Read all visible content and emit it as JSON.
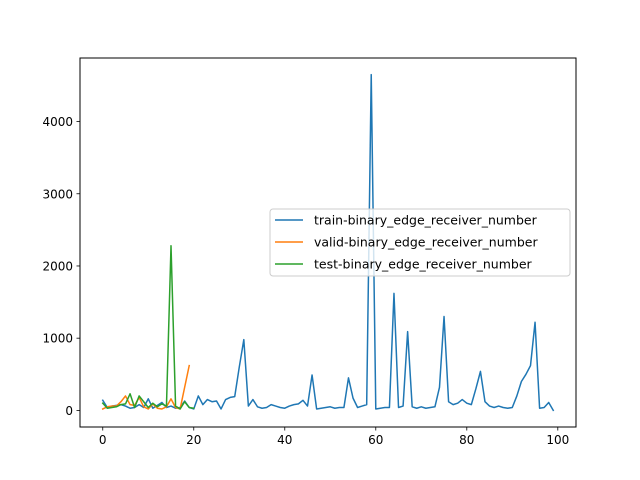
{
  "chart_data": {
    "type": "line",
    "title": "",
    "xlabel": "",
    "ylabel": "",
    "xlim": [
      -5,
      104
    ],
    "ylim": [
      -230,
      4880
    ],
    "xticks": [
      0,
      20,
      40,
      60,
      80,
      100
    ],
    "yticks": [
      0,
      1000,
      2000,
      3000,
      4000
    ],
    "grid": false,
    "legend_position": "center-right",
    "series": [
      {
        "name": "train-binary_edge_receiver_number",
        "color": "#1f77b4",
        "x": [
          0,
          1,
          2,
          3,
          4,
          5,
          6,
          7,
          8,
          9,
          10,
          11,
          12,
          13,
          14,
          15,
          16,
          17,
          18,
          19,
          20,
          21,
          22,
          23,
          24,
          25,
          26,
          27,
          28,
          29,
          30,
          31,
          32,
          33,
          34,
          35,
          36,
          37,
          38,
          39,
          40,
          41,
          42,
          43,
          44,
          45,
          46,
          47,
          48,
          49,
          50,
          51,
          52,
          53,
          54,
          55,
          56,
          57,
          58,
          59,
          60,
          61,
          62,
          63,
          64,
          65,
          66,
          67,
          68,
          69,
          70,
          71,
          72,
          73,
          74,
          75,
          76,
          77,
          78,
          79,
          80,
          81,
          82,
          83,
          84,
          85,
          86,
          87,
          88,
          89,
          90,
          91,
          92,
          93,
          94,
          95,
          96,
          97,
          98,
          99
        ],
        "values": [
          140,
          40,
          60,
          70,
          80,
          60,
          30,
          40,
          80,
          40,
          160,
          30,
          70,
          110,
          40,
          60,
          30,
          40,
          130,
          40,
          20,
          200,
          80,
          150,
          120,
          130,
          20,
          150,
          180,
          190,
          600,
          980,
          60,
          150,
          50,
          30,
          40,
          80,
          60,
          40,
          30,
          60,
          80,
          90,
          140,
          60,
          490,
          20,
          30,
          40,
          50,
          30,
          40,
          40,
          450,
          170,
          40,
          60,
          80,
          4650,
          20,
          30,
          40,
          40,
          1620,
          40,
          60,
          1090,
          50,
          30,
          50,
          30,
          40,
          50,
          320,
          1300,
          120,
          80,
          100,
          150,
          100,
          80,
          300,
          540,
          120,
          60,
          40,
          60,
          40,
          30,
          40,
          200,
          400,
          500,
          620,
          1220,
          30,
          40,
          110,
          0
        ]
      },
      {
        "name": "valid-binary_edge_receiver_number",
        "color": "#ff7f0e",
        "x": [
          0,
          1,
          2,
          3,
          4,
          5,
          6,
          7,
          8,
          9,
          10,
          11,
          12,
          13,
          14,
          15,
          16,
          17,
          18,
          19
        ],
        "values": [
          20,
          50,
          60,
          60,
          120,
          200,
          80,
          70,
          180,
          50,
          20,
          90,
          30,
          20,
          50,
          160,
          40,
          20,
          320,
          620
        ]
      },
      {
        "name": "test-binary_edge_receiver_number",
        "color": "#2ca02c",
        "x": [
          0,
          1,
          2,
          3,
          4,
          5,
          6,
          7,
          8,
          9,
          10,
          11,
          12,
          13,
          14,
          15,
          16,
          17,
          18,
          19,
          20
        ],
        "values": [
          100,
          30,
          40,
          50,
          80,
          90,
          230,
          40,
          200,
          120,
          40,
          100,
          50,
          90,
          60,
          2280,
          60,
          20,
          120,
          40,
          30
        ]
      }
    ]
  }
}
